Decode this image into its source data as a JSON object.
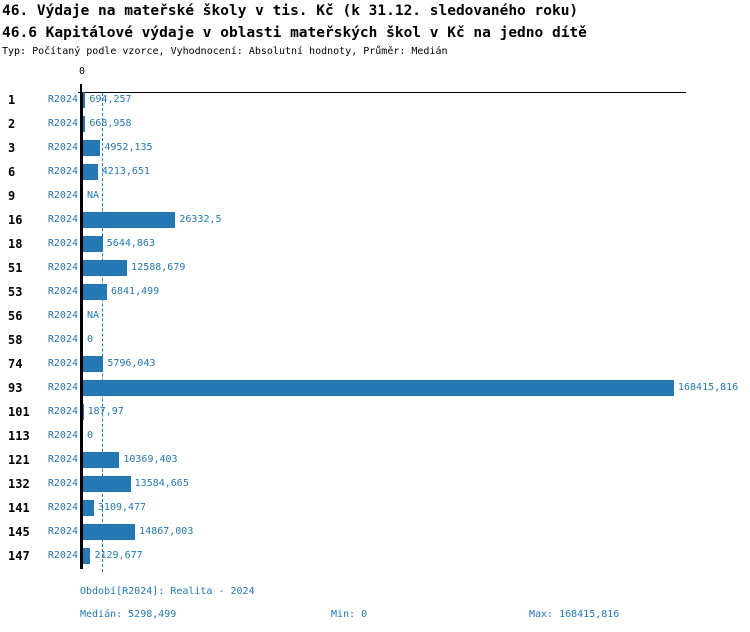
{
  "header": {
    "title_line1": "46. Výdaje na mateřské školy v tis. Kč (k 31.12. sledovaného roku)",
    "title_line2": "46.6 Kapitálové výdaje v oblasti mateřských škol v Kč na jedno dítě",
    "subtitle": "Typ: Počítaný podle vzorce, Vyhodnocení: Absolutní hodnoty, Průměr: Medián"
  },
  "chart_data": {
    "type": "bar",
    "orientation": "horizontal",
    "title": "46.6 Kapitálové výdaje v oblasti mateřských škol v Kč na jedno dítě",
    "axis_zero_label": "0",
    "na_label": "NA",
    "categories": [
      "1",
      "2",
      "3",
      "6",
      "9",
      "16",
      "18",
      "51",
      "53",
      "56",
      "58",
      "74",
      "93",
      "101",
      "113",
      "121",
      "132",
      "141",
      "145",
      "147"
    ],
    "series": [
      {
        "name": "R2024",
        "values": [
          694.257,
          668.958,
          4952.135,
          4213.651,
          null,
          26332.5,
          5644.863,
          12588.679,
          6841.499,
          null,
          0,
          5796.043,
          168415.816,
          187.97,
          0,
          10369.403,
          13584.665,
          3109.477,
          14867.003,
          2129.677
        ],
        "labels": [
          "694,257",
          "668,958",
          "4952,135",
          "4213,651",
          "NA",
          "26332,5",
          "5644,863",
          "12588,679",
          "6841,499",
          "NA",
          "0",
          "5796,043",
          "168415,816",
          "187,97",
          "0",
          "10369,403",
          "13584,665",
          "3109,477",
          "14867,003",
          "2129,677"
        ]
      }
    ],
    "xlim": [
      0,
      168415.816
    ],
    "median": 5298.499,
    "min": 0,
    "max": 168415.816,
    "bar_color": "#2478b4",
    "grid": false,
    "legend_position": "none"
  },
  "footer": {
    "period": "Období[R2024]: Realita - 2024",
    "median_label": "Medián: 5298,499",
    "min_label": "Min: 0",
    "max_label": "Max: 168415,816"
  },
  "colors": {
    "accent": "#2478b4",
    "text": "#000000",
    "background": "#ffffff"
  }
}
